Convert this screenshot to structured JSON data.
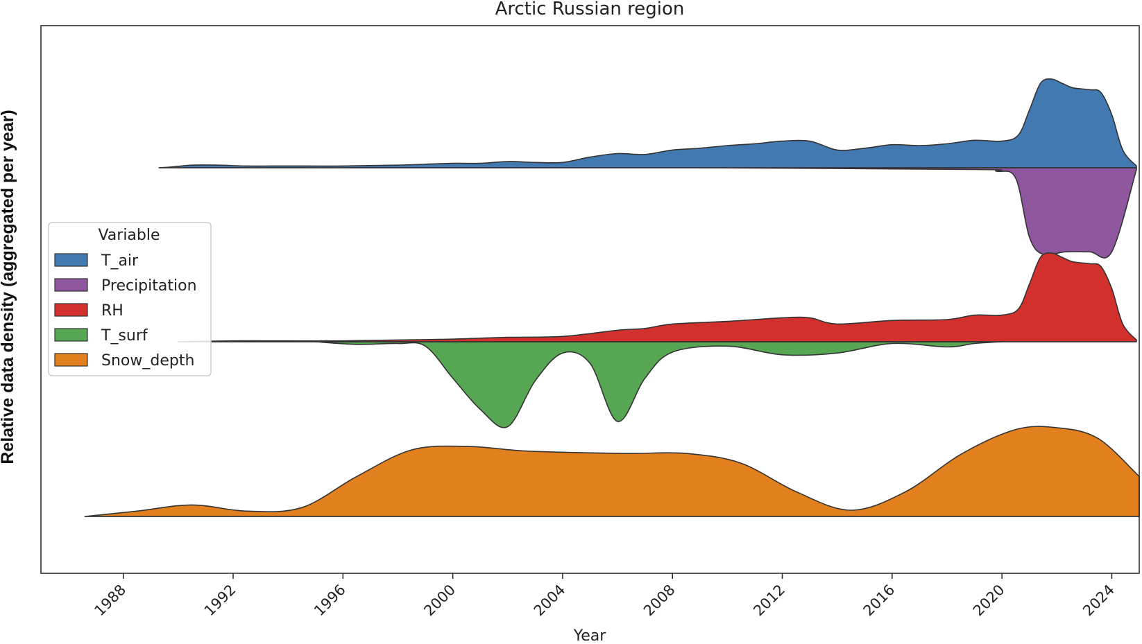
{
  "chart_data": {
    "type": "area",
    "title": "Arctic Russian region",
    "xlabel": "Year",
    "ylabel": "Relative data density (aggregated per year)",
    "xlim": [
      1985.0,
      2025.0
    ],
    "xticks": [
      1988,
      1992,
      1996,
      2000,
      2004,
      2008,
      2012,
      2016,
      2020,
      2024
    ],
    "grid": false,
    "legend": {
      "title": "Variable",
      "placement": "center-left",
      "entries": [
        "T_air",
        "Precipitation",
        "RH",
        "T_surf",
        "Snow_depth"
      ]
    },
    "series": [
      {
        "name": "T_air",
        "color": "#4279b0",
        "direction": "up",
        "baseline_rank": 1,
        "x": [
          1989.3,
          1989.8,
          1990.5,
          1991.5,
          1992.5,
          1994,
          1996,
          1998,
          2000,
          2001,
          2002,
          2003,
          2004,
          2005,
          2006,
          2007,
          2008,
          2009,
          2010,
          2011,
          2012,
          2013,
          2014,
          2015,
          2016,
          2017,
          2018,
          2019,
          2020,
          2020.6,
          2021.0,
          2021.4,
          2021.8,
          2022.2,
          2022.6,
          2023.2,
          2023.6,
          2024.0,
          2024.4,
          2024.9
        ],
        "y": [
          0,
          0.01,
          0.03,
          0.03,
          0.02,
          0.02,
          0.02,
          0.03,
          0.05,
          0.05,
          0.07,
          0.06,
          0.06,
          0.12,
          0.16,
          0.15,
          0.2,
          0.22,
          0.25,
          0.27,
          0.3,
          0.3,
          0.2,
          0.22,
          0.26,
          0.25,
          0.27,
          0.31,
          0.3,
          0.37,
          0.65,
          0.95,
          1.0,
          0.95,
          0.9,
          0.88,
          0.85,
          0.6,
          0.2,
          0.02
        ]
      },
      {
        "name": "Precipitation",
        "color": "#8f579e",
        "direction": "down",
        "baseline_rank": 1,
        "x": [
          2009,
          2019,
          2019.8,
          2020.5,
          2021.0,
          2021.5,
          2022.3,
          2023.2,
          2024.0,
          2024.9
        ],
        "y": [
          0,
          0.02,
          0.04,
          0.12,
          0.8,
          1.0,
          0.97,
          0.97,
          0.97,
          0.02
        ]
      },
      {
        "name": "RH",
        "color": "#d1302d",
        "direction": "up",
        "baseline_rank": 2,
        "x": [
          1990,
          1992,
          1994,
          1996,
          1998,
          2000,
          2002,
          2004,
          2006,
          2007,
          2008,
          2010,
          2012,
          2013,
          2014,
          2016,
          2018,
          2019,
          2020,
          2020.6,
          2021.0,
          2021.4,
          2021.8,
          2022.2,
          2022.6,
          2023.2,
          2023.6,
          2024.0,
          2024.4,
          2024.9
        ],
        "y": [
          0,
          0.01,
          0.01,
          0.01,
          0.02,
          0.03,
          0.05,
          0.06,
          0.13,
          0.15,
          0.2,
          0.23,
          0.27,
          0.27,
          0.2,
          0.24,
          0.25,
          0.3,
          0.3,
          0.37,
          0.65,
          0.95,
          1.0,
          0.95,
          0.9,
          0.88,
          0.85,
          0.6,
          0.2,
          0.02
        ]
      },
      {
        "name": "T_surf",
        "color": "#56a653",
        "direction": "down",
        "baseline_rank": 2,
        "x": [
          1995,
          1996.5,
          1998,
          1999,
          2000,
          2001,
          2002,
          2003,
          2004,
          2005,
          2006,
          2007,
          2008,
          2010,
          2012,
          2014,
          2016,
          2018,
          2019,
          2020
        ],
        "y": [
          0,
          0.03,
          0.02,
          0.05,
          0.42,
          0.78,
          0.98,
          0.45,
          0.13,
          0.25,
          0.92,
          0.42,
          0.12,
          0.05,
          0.15,
          0.13,
          0.02,
          0.06,
          0.02,
          0
        ]
      },
      {
        "name": "Snow_depth",
        "color": "#e2801f",
        "direction": "up",
        "baseline_rank": 3,
        "x": [
          1986.6,
          1988.5,
          1990.5,
          1992.5,
          1994.5,
          1996.5,
          1998.5,
          2000.5,
          2002.5,
          2004.5,
          2006.5,
          2008.5,
          2010.5,
          2012.5,
          2014.5,
          2016.5,
          2018.5,
          2020.5,
          2022.0,
          2023.5,
          2025.0
        ],
        "y": [
          0,
          0.06,
          0.13,
          0.06,
          0.1,
          0.45,
          0.75,
          0.79,
          0.74,
          0.72,
          0.71,
          0.71,
          0.6,
          0.28,
          0.07,
          0.28,
          0.7,
          0.98,
          1.0,
          0.88,
          0.45
        ]
      }
    ]
  }
}
